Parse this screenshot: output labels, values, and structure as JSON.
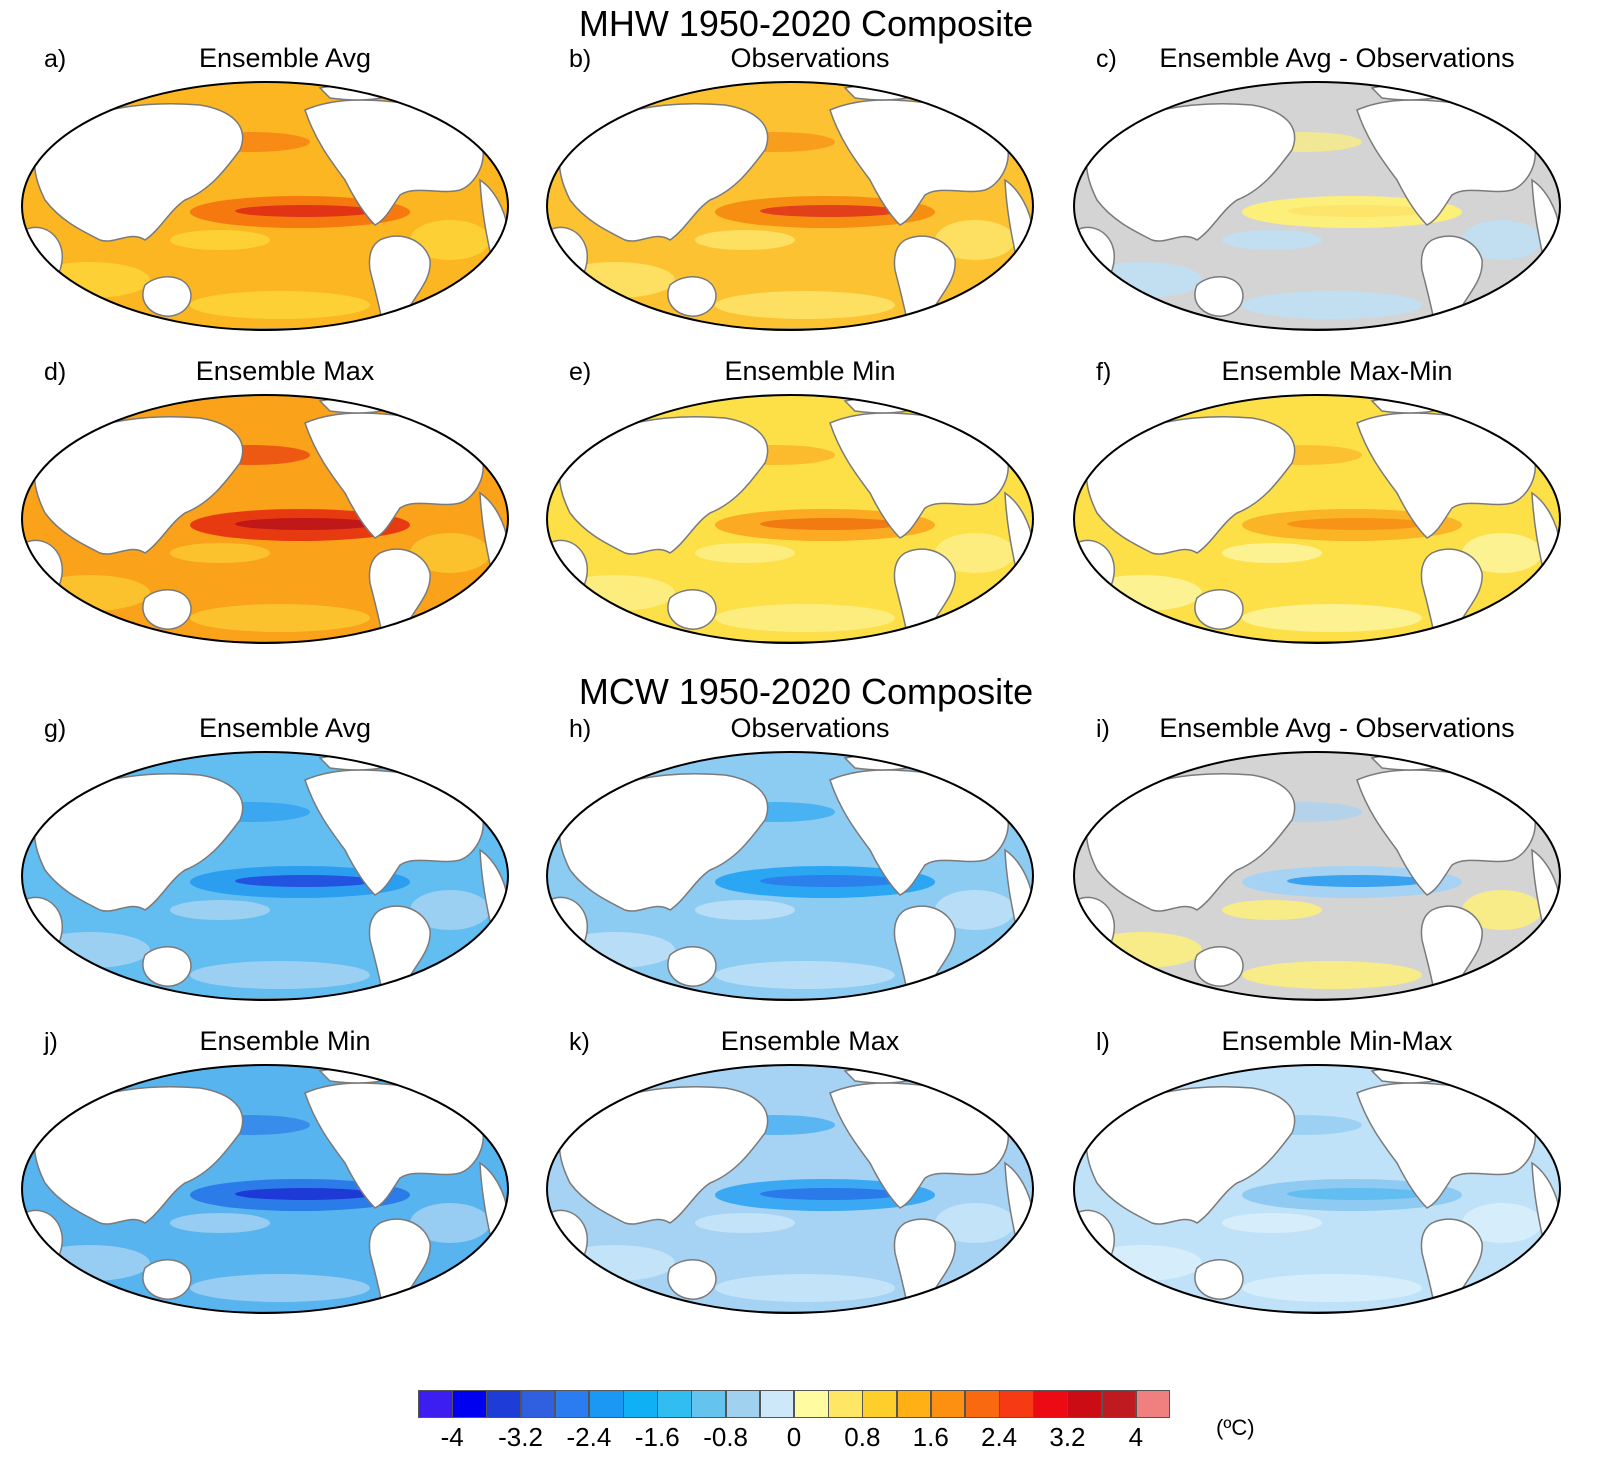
{
  "sections": [
    {
      "title": "MHW 1950-2020 Composite"
    },
    {
      "title": "MCW 1950-2020 Composite"
    }
  ],
  "panels": [
    {
      "letter": "a)",
      "title": "Ensemble Avg",
      "ocean": "#fcb622",
      "band": "#f5790f",
      "band_core": "#e13414",
      "patch": "#fdd63a"
    },
    {
      "letter": "b)",
      "title": "Observations",
      "ocean": "#fcc232",
      "band": "#f68e12",
      "band_core": "#e2401a",
      "patch": "#fde56a"
    },
    {
      "letter": "c)",
      "title": "Ensemble Avg - Observations",
      "ocean": "#d4d4d4",
      "band": "#fdf07a",
      "band_core": "#fde46a",
      "patch": "#bde0f5"
    },
    {
      "letter": "d)",
      "title": "Ensemble Max",
      "ocean": "#f9a21a",
      "band": "#e83a10",
      "band_core": "#c01818",
      "patch": "#fdc833"
    },
    {
      "letter": "e)",
      "title": "Ensemble Min",
      "ocean": "#fde048",
      "band": "#fbaa22",
      "band_core": "#f17a12",
      "patch": "#fdee8a"
    },
    {
      "letter": "f)",
      "title": "Ensemble Max-Min",
      "ocean": "#fde048",
      "band": "#fbb426",
      "band_core": "#f79418",
      "patch": "#fdf5a0"
    },
    {
      "letter": "g)",
      "title": "Ensemble Avg",
      "ocean": "#62bdf0",
      "band": "#2b9ef0",
      "band_core": "#2254e0",
      "patch": "#a7d4f3"
    },
    {
      "letter": "h)",
      "title": "Observations",
      "ocean": "#8ccbf2",
      "band": "#2ba6f2",
      "band_core": "#2b80ec",
      "patch": "#c0e2f8"
    },
    {
      "letter": "i)",
      "title": "Ensemble Avg - Observations",
      "ocean": "#d4d4d4",
      "band": "#a6d3f4",
      "band_core": "#3aa2ef",
      "patch": "#fdf07a"
    },
    {
      "letter": "j)",
      "title": "Ensemble Min",
      "ocean": "#58b4ee",
      "band": "#2b7ce8",
      "band_core": "#1e3ad6",
      "patch": "#a2d1f2"
    },
    {
      "letter": "k)",
      "title": "Ensemble Max",
      "ocean": "#a6d3f4",
      "band": "#3aa8f2",
      "band_core": "#2a7aea",
      "patch": "#c8e5f8"
    },
    {
      "letter": "l)",
      "title": "Ensemble Min-Max",
      "ocean": "#c0e2f8",
      "band": "#8fcaf2",
      "band_core": "#62bdf0",
      "patch": "#d9eefb"
    }
  ],
  "colorbar": {
    "colors": [
      "#3c1ef0",
      "#0000f0",
      "#1e3cd6",
      "#3060e0",
      "#2a7cf0",
      "#1a98f4",
      "#10b0f4",
      "#31bdf0",
      "#64c4ee",
      "#a0d2f0",
      "#cde8f8",
      "#fefba0",
      "#fee765",
      "#fece2a",
      "#feb014",
      "#fd9010",
      "#f96a10",
      "#f53a14",
      "#ec0a14",
      "#cc0c14",
      "#bf1a20",
      "#f08080"
    ],
    "tick_labels": [
      "-4",
      "-3.2",
      "-2.4",
      "-1.6",
      "-0.8",
      "0",
      "0.8",
      "1.6",
      "2.4",
      "3.2",
      "4"
    ],
    "unit": "(ºC)"
  }
}
